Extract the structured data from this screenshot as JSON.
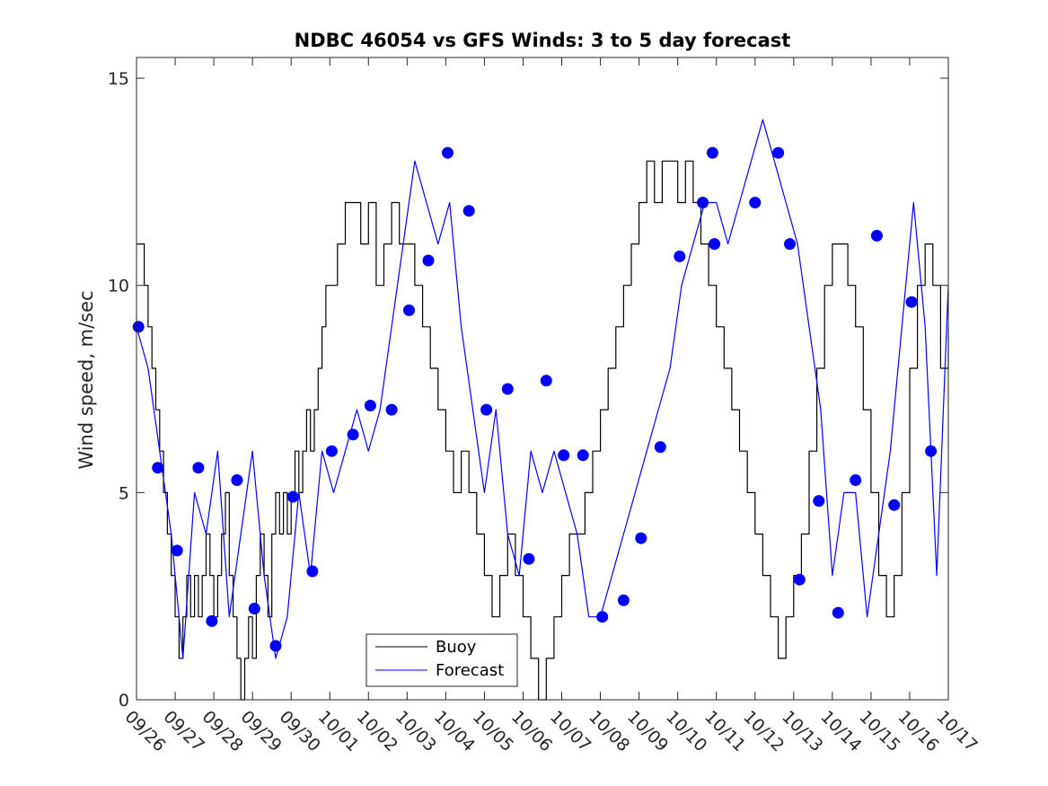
{
  "chart_data": {
    "type": "line",
    "title": "NDBC 46054 vs GFS Winds: 3 to 5 day forecast",
    "xlabel": "",
    "ylabel": "Wind speed, m/sec",
    "xlim": [
      0,
      21
    ],
    "ylim": [
      0,
      15.5
    ],
    "y_ticks": [
      0,
      5,
      10,
      15
    ],
    "y_tick_labels": [
      "0",
      "5",
      "10",
      "15"
    ],
    "x_ticks": [
      0,
      1,
      2,
      3,
      4,
      5,
      6,
      7,
      8,
      9,
      10,
      11,
      12,
      13,
      14,
      15,
      16,
      17,
      18,
      19,
      20,
      21
    ],
    "x_tick_labels": [
      "09/26",
      "09/27",
      "09/28",
      "09/29",
      "09/30",
      "10/01",
      "10/02",
      "10/03",
      "10/04",
      "10/05",
      "10/06",
      "10/07",
      "10/08",
      "10/09",
      "10/10",
      "10/11",
      "10/12",
      "10/13",
      "10/14",
      "10/15",
      "10/16",
      "10/17"
    ],
    "legend": {
      "position": "bottom-center",
      "entries": [
        "Buoy",
        "Forecast"
      ]
    },
    "colors": {
      "buoy": "#000000",
      "forecast": "#0000ff",
      "marker": "#0000ff"
    },
    "series": [
      {
        "name": "Buoy",
        "style": "step",
        "x": [
          0,
          0.1,
          0.2,
          0.3,
          0.4,
          0.5,
          0.6,
          0.7,
          0.8,
          0.9,
          1.0,
          1.1,
          1.2,
          1.3,
          1.4,
          1.5,
          1.6,
          1.7,
          1.8,
          1.9,
          2.0,
          2.1,
          2.2,
          2.3,
          2.4,
          2.5,
          2.6,
          2.7,
          2.8,
          2.9,
          3.0,
          3.1,
          3.2,
          3.3,
          3.4,
          3.5,
          3.6,
          3.7,
          3.8,
          3.9,
          4.0,
          4.1,
          4.2,
          4.3,
          4.4,
          4.5,
          4.6,
          4.7,
          4.8,
          4.9,
          5.0,
          5.2,
          5.4,
          5.6,
          5.8,
          6.0,
          6.2,
          6.4,
          6.6,
          6.8,
          7.0,
          7.2,
          7.4,
          7.6,
          7.8,
          8.0,
          8.2,
          8.4,
          8.6,
          8.8,
          9.0,
          9.2,
          9.4,
          9.6,
          9.8,
          10.0,
          10.2,
          10.4,
          10.6,
          10.8,
          11.0,
          11.2,
          11.4,
          11.6,
          11.8,
          12.0,
          12.2,
          12.4,
          12.6,
          12.8,
          13.0,
          13.2,
          13.4,
          13.6,
          13.8,
          14.0,
          14.2,
          14.4,
          14.6,
          14.8,
          15.0,
          15.2,
          15.4,
          15.6,
          15.8,
          16.0,
          16.2,
          16.4,
          16.6,
          16.8,
          17.0,
          17.2,
          17.4,
          17.6,
          17.8,
          18.0,
          18.2,
          18.4,
          18.6,
          18.8,
          19.0,
          19.2,
          19.4,
          19.6,
          19.8,
          20.0,
          20.2,
          20.4,
          20.6,
          20.8,
          21.0
        ],
        "y": [
          11,
          11,
          10,
          9,
          8,
          7,
          6,
          5,
          4,
          3,
          2,
          1,
          2,
          3,
          2,
          3,
          2,
          3,
          4,
          3,
          2,
          3,
          4,
          5,
          3,
          2,
          1,
          0,
          1,
          2,
          1,
          3,
          4,
          3,
          2,
          4,
          5,
          4,
          5,
          4,
          5,
          6,
          5,
          6,
          7,
          6,
          7,
          8,
          9,
          10,
          10,
          11,
          12,
          12,
          11,
          12,
          10,
          11,
          12,
          11,
          11,
          10,
          9,
          8,
          7,
          6,
          5,
          6,
          5,
          4,
          3,
          2,
          3,
          4,
          3,
          2,
          1,
          0,
          1,
          2,
          3,
          4,
          4,
          5,
          6,
          7,
          8,
          9,
          10,
          11,
          12,
          13,
          12,
          13,
          13,
          12,
          13,
          12,
          11,
          10,
          9,
          8,
          7,
          6,
          5,
          4,
          3,
          2,
          1,
          2,
          3,
          4,
          6,
          8,
          10,
          11,
          11,
          10,
          9,
          7,
          5,
          3,
          2,
          3,
          5,
          8,
          10,
          11,
          10,
          8,
          9
        ]
      },
      {
        "name": "Forecast",
        "style": "line",
        "x": [
          0,
          0.3,
          0.6,
          0.9,
          1.2,
          1.5,
          1.8,
          2.1,
          2.4,
          2.7,
          3.0,
          3.3,
          3.6,
          3.9,
          4.2,
          4.5,
          4.8,
          5.1,
          5.4,
          5.7,
          6.0,
          6.3,
          6.6,
          6.9,
          7.2,
          7.5,
          7.8,
          8.1,
          8.4,
          8.7,
          9.0,
          9.3,
          9.6,
          9.9,
          10.2,
          10.5,
          10.8,
          11.1,
          11.4,
          11.7,
          12.0,
          12.3,
          12.6,
          12.9,
          13.2,
          13.5,
          13.8,
          14.1,
          14.4,
          14.7,
          15.0,
          15.3,
          15.6,
          15.9,
          16.2,
          16.5,
          16.8,
          17.1,
          17.4,
          17.7,
          18.0,
          18.3,
          18.6,
          18.9,
          19.2,
          19.5,
          19.8,
          20.1,
          20.4,
          20.7,
          21.0
        ],
        "y": [
          9,
          8,
          6,
          4,
          1,
          5,
          4,
          6,
          2,
          4,
          6,
          3,
          1,
          2,
          5,
          3,
          6,
          5,
          6,
          7,
          6,
          7,
          9,
          11,
          13,
          12,
          11,
          12,
          9,
          7,
          5,
          7,
          4,
          3,
          6,
          5,
          6,
          5,
          4,
          2,
          2,
          3,
          4,
          5,
          6,
          7,
          8,
          10,
          11,
          12,
          12,
          11,
          12,
          13,
          14,
          13,
          12,
          11,
          9,
          7,
          3,
          5,
          5,
          2,
          4,
          6,
          9,
          12,
          9,
          3,
          10
        ]
      }
    ],
    "markers": {
      "name": "Forecast points",
      "x": [
        0.05,
        0.55,
        1.05,
        1.6,
        1.95,
        2.6,
        3.05,
        3.6,
        4.05,
        4.55,
        5.05,
        5.6,
        6.05,
        6.6,
        7.05,
        7.55,
        8.05,
        8.6,
        9.05,
        9.6,
        10.15,
        10.6,
        11.05,
        11.55,
        12.05,
        12.6,
        13.05,
        13.55,
        14.05,
        14.65,
        14.9,
        14.95,
        16.0,
        16.6,
        16.9,
        17.15,
        17.65,
        18.15,
        18.6,
        19.15,
        19.6,
        20.05,
        20.55
      ],
      "y": [
        9.0,
        5.6,
        3.6,
        5.6,
        1.9,
        5.3,
        2.2,
        1.3,
        4.9,
        3.1,
        6.0,
        6.4,
        7.1,
        7.0,
        9.4,
        10.6,
        13.2,
        11.8,
        7.0,
        7.5,
        3.4,
        7.7,
        5.9,
        5.9,
        2.0,
        2.4,
        3.9,
        6.1,
        10.7,
        12.0,
        13.2,
        11.0,
        12.0,
        13.2,
        11.0,
        2.9,
        4.8,
        2.1,
        5.3,
        11.2,
        4.7,
        9.6,
        6.0
      ]
    }
  }
}
